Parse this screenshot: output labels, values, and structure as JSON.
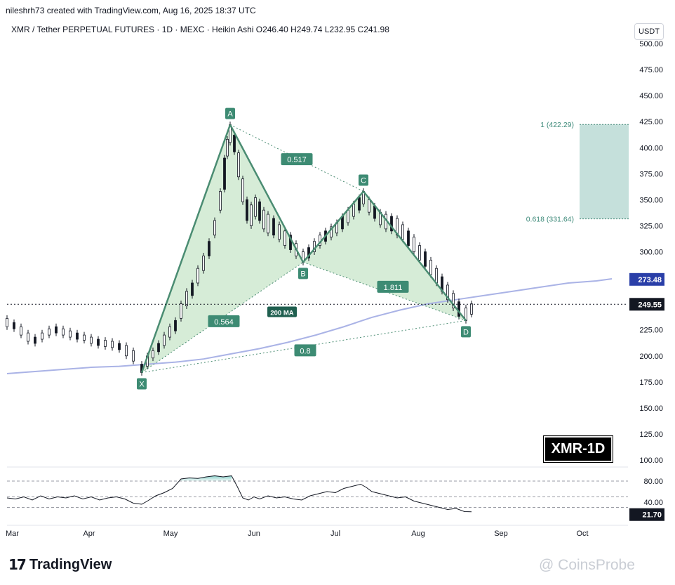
{
  "header": {
    "attribution": "nileshrh73 created with TradingView.com, Aug 16, 2025 18:37 UTC",
    "symbol_line": "XMR / Tether PERPETUAL FUTURES · 1D · MEXC · Heikin Ashi  O246.40  H249.74  L232.95  C241.98",
    "currency_button": "USDT"
  },
  "branding": {
    "logo_mark": "17",
    "logo_text": "TradingView",
    "watermark": "@ CoinsProbe",
    "badge": "XMR-1D"
  },
  "chart_data": {
    "type": "line",
    "price_axis": {
      "ticks": [
        500,
        475,
        450,
        425,
        400,
        375,
        350,
        325,
        300,
        275,
        250,
        225,
        200,
        175,
        150,
        125,
        100
      ],
      "tick_labels": [
        "500.00",
        "475.00",
        "450.00",
        "425.00",
        "400.00",
        "375.00",
        "350.00",
        "325.00",
        "300.00",
        "225.00",
        "200.00",
        "175.00",
        "150.00",
        "125.00",
        "100.00"
      ],
      "ylim": [
        100,
        500
      ]
    },
    "time_axis": {
      "labels": [
        "Mar",
        "Apr",
        "May",
        "Jun",
        "Jul",
        "Aug",
        "Sep",
        "Oct"
      ]
    },
    "current_price": {
      "value": 249.55,
      "label": "249.55"
    },
    "ma_200": {
      "name": "200 MA",
      "last_value": 273.48,
      "label": "273.48",
      "points": [
        [
          0,
          183
        ],
        [
          20,
          185
        ],
        [
          40,
          187
        ],
        [
          60,
          189
        ],
        [
          80,
          190
        ],
        [
          100,
          192
        ],
        [
          120,
          194
        ],
        [
          140,
          197
        ],
        [
          160,
          202
        ],
        [
          180,
          207
        ],
        [
          200,
          213
        ],
        [
          220,
          220
        ],
        [
          240,
          228
        ],
        [
          260,
          237
        ],
        [
          280,
          244
        ],
        [
          300,
          250
        ],
        [
          320,
          254
        ],
        [
          340,
          258
        ],
        [
          360,
          262
        ],
        [
          380,
          266
        ],
        [
          400,
          270
        ],
        [
          420,
          272
        ],
        [
          431,
          274
        ]
      ]
    },
    "harmonic_pattern": {
      "points": [
        {
          "label": "X",
          "t": 96,
          "price": 184
        },
        {
          "label": "A",
          "t": 159,
          "price": 422
        },
        {
          "label": "B",
          "t": 211,
          "price": 290
        },
        {
          "label": "C",
          "t": 254,
          "price": 358
        },
        {
          "label": "D",
          "t": 327,
          "price": 234
        }
      ],
      "ratios": [
        {
          "label": "0.564",
          "between": "XA-B"
        },
        {
          "label": "0.517",
          "between": "AB-C"
        },
        {
          "label": "1.811",
          "between": "BC-D"
        },
        {
          "label": "0.8",
          "between": "XA-D"
        }
      ]
    },
    "target_zone": {
      "upper": {
        "label": "1 (422.29)",
        "value": 422.29
      },
      "lower": {
        "label": "0.618 (331.64)",
        "value": 331.64
      }
    },
    "candles": [
      [
        0,
        236,
        228
      ],
      [
        5,
        232,
        226
      ],
      [
        10,
        228,
        220
      ],
      [
        15,
        222,
        214
      ],
      [
        20,
        218,
        212
      ],
      [
        25,
        222,
        216
      ],
      [
        30,
        226,
        220
      ],
      [
        35,
        228,
        222
      ],
      [
        40,
        226,
        220
      ],
      [
        45,
        224,
        218
      ],
      [
        50,
        222,
        216
      ],
      [
        55,
        220,
        215
      ],
      [
        60,
        218,
        212
      ],
      [
        65,
        216,
        210
      ],
      [
        70,
        215,
        209
      ],
      [
        75,
        214,
        208
      ],
      [
        80,
        212,
        206
      ],
      [
        85,
        210,
        200
      ],
      [
        90,
        205,
        195
      ],
      [
        96,
        192,
        184
      ],
      [
        100,
        200,
        190
      ],
      [
        104,
        205,
        198
      ],
      [
        108,
        212,
        204
      ],
      [
        112,
        220,
        210
      ],
      [
        116,
        228,
        218
      ],
      [
        120,
        234,
        224
      ],
      [
        124,
        250,
        236
      ],
      [
        128,
        262,
        248
      ],
      [
        132,
        270,
        258
      ],
      [
        136,
        284,
        270
      ],
      [
        140,
        296,
        282
      ],
      [
        144,
        310,
        296
      ],
      [
        148,
        330,
        316
      ],
      [
        152,
        358,
        340
      ],
      [
        155,
        390,
        360
      ],
      [
        157,
        408,
        392
      ],
      [
        159,
        422,
        405
      ],
      [
        162,
        412,
        396
      ],
      [
        165,
        395,
        372
      ],
      [
        168,
        370,
        348
      ],
      [
        171,
        350,
        330
      ],
      [
        174,
        345,
        325
      ],
      [
        177,
        352,
        334
      ],
      [
        180,
        348,
        330
      ],
      [
        183,
        340,
        322
      ],
      [
        186,
        336,
        318
      ],
      [
        190,
        332,
        316
      ],
      [
        194,
        326,
        312
      ],
      [
        198,
        320,
        306
      ],
      [
        202,
        316,
        302
      ],
      [
        206,
        308,
        296
      ],
      [
        211,
        300,
        290
      ],
      [
        215,
        304,
        294
      ],
      [
        219,
        310,
        300
      ],
      [
        223,
        316,
        306
      ],
      [
        227,
        320,
        310
      ],
      [
        231,
        324,
        314
      ],
      [
        235,
        328,
        318
      ],
      [
        239,
        334,
        322
      ],
      [
        243,
        340,
        328
      ],
      [
        247,
        346,
        334
      ],
      [
        251,
        352,
        340
      ],
      [
        254,
        358,
        346
      ],
      [
        258,
        350,
        338
      ],
      [
        262,
        344,
        332
      ],
      [
        266,
        338,
        326
      ],
      [
        270,
        336,
        322
      ],
      [
        274,
        334,
        320
      ],
      [
        278,
        332,
        316
      ],
      [
        282,
        326,
        312
      ],
      [
        286,
        320,
        306
      ],
      [
        290,
        314,
        300
      ],
      [
        294,
        306,
        292
      ],
      [
        298,
        300,
        286
      ],
      [
        302,
        292,
        278
      ],
      [
        306,
        284,
        270
      ],
      [
        310,
        276,
        262
      ],
      [
        314,
        268,
        254
      ],
      [
        318,
        260,
        246
      ],
      [
        322,
        252,
        238
      ],
      [
        327,
        246,
        234
      ],
      [
        331,
        250,
        240
      ]
    ],
    "rsi": {
      "levels": [
        80,
        50,
        30
      ],
      "tick_labels": [
        "80.00",
        "40.00"
      ],
      "last_label": "21.70",
      "last_value": 21.7,
      "ylim": [
        0,
        100
      ],
      "values": [
        [
          0,
          48
        ],
        [
          6,
          46
        ],
        [
          12,
          50
        ],
        [
          18,
          44
        ],
        [
          24,
          52
        ],
        [
          30,
          46
        ],
        [
          36,
          50
        ],
        [
          42,
          48
        ],
        [
          48,
          52
        ],
        [
          54,
          46
        ],
        [
          60,
          50
        ],
        [
          66,
          44
        ],
        [
          72,
          48
        ],
        [
          78,
          50
        ],
        [
          84,
          46
        ],
        [
          90,
          38
        ],
        [
          96,
          36
        ],
        [
          100,
          42
        ],
        [
          106,
          52
        ],
        [
          112,
          58
        ],
        [
          118,
          66
        ],
        [
          124,
          84
        ],
        [
          130,
          86
        ],
        [
          136,
          85
        ],
        [
          142,
          88
        ],
        [
          148,
          90
        ],
        [
          154,
          88
        ],
        [
          160,
          90
        ],
        [
          164,
          70
        ],
        [
          168,
          48
        ],
        [
          172,
          44
        ],
        [
          176,
          50
        ],
        [
          180,
          46
        ],
        [
          186,
          52
        ],
        [
          192,
          48
        ],
        [
          198,
          50
        ],
        [
          204,
          46
        ],
        [
          210,
          44
        ],
        [
          216,
          52
        ],
        [
          222,
          56
        ],
        [
          228,
          60
        ],
        [
          234,
          58
        ],
        [
          240,
          66
        ],
        [
          246,
          70
        ],
        [
          252,
          74
        ],
        [
          256,
          68
        ],
        [
          260,
          60
        ],
        [
          266,
          56
        ],
        [
          272,
          52
        ],
        [
          278,
          48
        ],
        [
          284,
          50
        ],
        [
          290,
          42
        ],
        [
          296,
          38
        ],
        [
          302,
          34
        ],
        [
          308,
          30
        ],
        [
          314,
          26
        ],
        [
          320,
          28
        ],
        [
          326,
          22
        ],
        [
          331,
          21.7
        ]
      ]
    }
  }
}
